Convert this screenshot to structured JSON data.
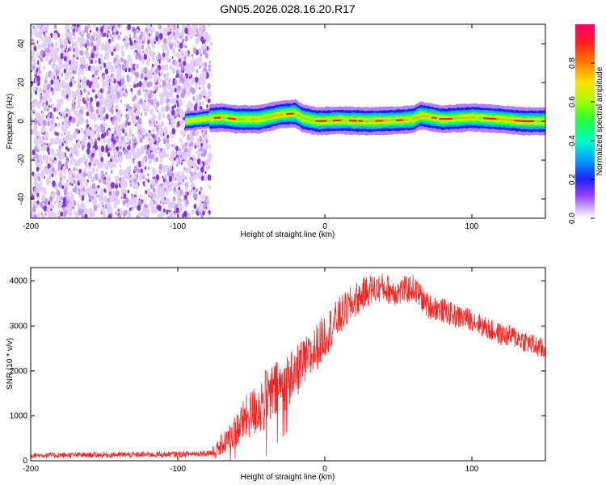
{
  "title": "GN05.2026.028.16.20.R17",
  "chart_data": [
    {
      "type": "heatmap",
      "name": "spectrogram",
      "xlabel": "Height of straight line (km)",
      "ylabel": "Frequency (Hz)",
      "xlim": [
        -200,
        150
      ],
      "ylim": [
        -50,
        50
      ],
      "x_ticks": [
        -200,
        -100,
        0,
        100
      ],
      "y_ticks": [
        -40,
        -20,
        0,
        20,
        40
      ],
      "x_tick_labels": [
        "-200",
        "-100",
        "0",
        "100"
      ],
      "y_tick_labels": [
        "-40",
        "-20",
        "0",
        "20",
        "40"
      ],
      "noise_region_km": [
        -200,
        -78
      ],
      "onset_km": -95,
      "signal_track": {
        "x": [
          -95,
          -78,
          -70,
          -60,
          -45,
          -30,
          -20,
          -15,
          -5,
          10,
          30,
          50,
          60,
          65,
          80,
          100,
          120,
          135,
          150
        ],
        "freq_hz": [
          0,
          1.5,
          2,
          1,
          1,
          3.5,
          4,
          1.5,
          0,
          0.5,
          0,
          0.5,
          1,
          3,
          1,
          2,
          1,
          0,
          0
        ]
      },
      "colorbar": {
        "label": "Normalized spectral amplitude",
        "range": [
          0,
          1
        ],
        "ticks": [
          0.0,
          0.2,
          0.4,
          0.6,
          0.8
        ],
        "tick_labels": [
          "0.0",
          "0.2",
          "0.4",
          "0.6",
          "0.8"
        ],
        "colors": [
          "#ffffff",
          "#c8a0ff",
          "#8020ff",
          "#2020ff",
          "#00c0ff",
          "#00ffa0",
          "#40ff00",
          "#c0ff00",
          "#ffc000",
          "#ff4000",
          "#ff0040",
          "#ff0080"
        ]
      }
    },
    {
      "type": "line",
      "name": "snr",
      "xlabel": "Height of straight line (km)",
      "ylabel": "SNR (10 * v/v)",
      "xlim": [
        -200,
        150
      ],
      "ylim": [
        0,
        4300
      ],
      "x_ticks": [
        -200,
        -100,
        0,
        100
      ],
      "y_ticks": [
        0,
        1000,
        2000,
        3000,
        4000
      ],
      "x_tick_labels": [
        "-200",
        "-100",
        "0",
        "100"
      ],
      "y_tick_labels": [
        "0",
        "1000",
        "2000",
        "3000",
        "4000"
      ],
      "line_color": "#ff2020",
      "envelope": {
        "x": [
          -200,
          -150,
          -100,
          -75,
          -65,
          -55,
          -45,
          -35,
          -25,
          -10,
          0,
          10,
          20,
          30,
          40,
          50,
          60,
          70,
          80,
          90,
          100,
          110,
          120,
          130,
          140,
          150
        ],
        "y": [
          120,
          130,
          140,
          180,
          500,
          900,
          1200,
          1500,
          1800,
          2300,
          2800,
          3200,
          3550,
          3800,
          3850,
          3750,
          3850,
          3450,
          3350,
          3200,
          3150,
          2950,
          2800,
          2750,
          2600,
          2450
        ]
      },
      "noise_amplitude": {
        "x": [
          -200,
          -80,
          -70,
          -40,
          -20,
          0,
          30,
          60,
          100,
          150
        ],
        "y": [
          60,
          70,
          250,
          700,
          600,
          500,
          350,
          300,
          250,
          250
        ]
      }
    }
  ]
}
